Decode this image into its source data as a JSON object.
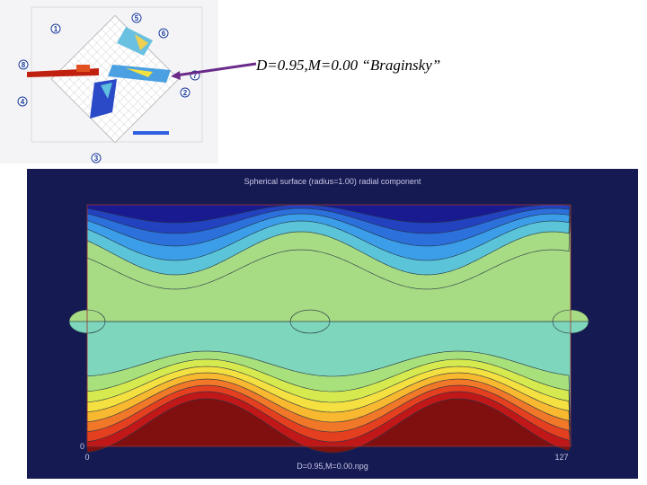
{
  "caption": "D=0.95,M=0.00 “Braginsky”",
  "inset": {
    "callouts": [
      "1",
      "5",
      "6",
      "8",
      "4",
      "7",
      "2",
      "3"
    ]
  },
  "plot": {
    "title": "Spherical surface (radius=1.00)   radial component",
    "footer": "D=0.95,M=0.00.npg",
    "corner_labels": [
      "0",
      "0",
      "127"
    ]
  }
}
